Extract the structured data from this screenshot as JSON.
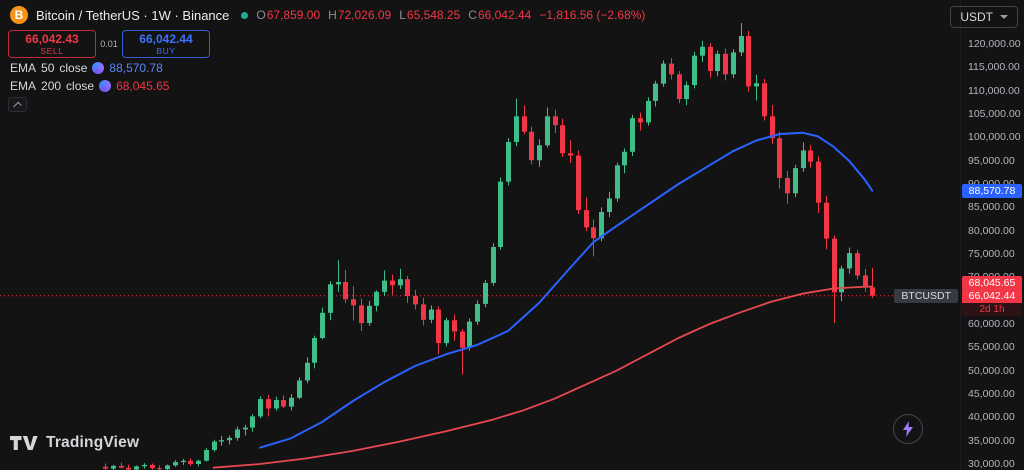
{
  "header": {
    "symbol_title": "Bitcoin / TetherUS · 1W · Binance",
    "ohlc": {
      "o_label": "O",
      "o": "67,859.00",
      "h_label": "H",
      "h": "72,026.09",
      "l_label": "L",
      "l": "65,548.25",
      "c_label": "C",
      "c": "66,042.44",
      "change": "−1,816.56 (−2.68%)"
    },
    "currency_button": "USDT",
    "sell_price": "66,042.43",
    "sell_label": "SELL",
    "spread": "0.01",
    "buy_price": "66,042.44",
    "buy_label": "BUY",
    "indicators": [
      {
        "name": "EMA",
        "param": "50",
        "source": "close",
        "value": "88,570.78",
        "color": "#5b84f6"
      },
      {
        "name": "EMA",
        "param": "200",
        "source": "close",
        "value": "68,045.65",
        "color": "#f23645"
      }
    ]
  },
  "badges": {
    "ema50": {
      "text": "88,570.78",
      "value": 88570.78,
      "color": "#2962ff"
    },
    "ema200": {
      "text": "68,045.65",
      "value": 68045.65,
      "color": "#f23645"
    },
    "last": {
      "text": "66,042.44",
      "value": 66042.44,
      "color": "#f23645"
    },
    "countdown": "2d 1h",
    "symbol_label": "BTCUSDT"
  },
  "footer": {
    "logo_text": "TradingView"
  },
  "chart_data": {
    "type": "candlestick",
    "title": "Bitcoin / TetherUS 1W Binance",
    "last_price": 66042.44,
    "grid": false,
    "price_axis": {
      "visible_min": 30000,
      "visible_max": 120000,
      "tick_step": 5000,
      "ticks": [
        120000,
        115000,
        110000,
        105000,
        100000,
        95000,
        90000,
        85000,
        80000,
        75000,
        70000,
        65000,
        60000,
        55000,
        50000,
        45000,
        40000,
        35000,
        30000
      ],
      "tick_labels": [
        "120,000.00",
        "115,000.00",
        "110,000.00",
        "105,000.00",
        "100,000.00",
        "95,000.00",
        "90,000.00",
        "85,000.00",
        "80,000.00",
        "75,000.00",
        "70,000.00",
        "65,000.00",
        "60,000.00",
        "55,000.00",
        "50,000.00",
        "45,000.00",
        "40,000.00",
        "35,000.00",
        "30,000.00"
      ]
    },
    "colors": {
      "up": "#41bd89",
      "down": "#f23645",
      "ema50": "#2962ff",
      "ema200": "#e8484f"
    },
    "candles_ohlc": [
      [
        29400,
        30100,
        28600,
        29000
      ],
      [
        29000,
        29800,
        28400,
        29600
      ],
      [
        29600,
        30300,
        29000,
        29200
      ],
      [
        29200,
        29900,
        28500,
        28800
      ],
      [
        28800,
        29700,
        28300,
        29500
      ],
      [
        29500,
        30200,
        29000,
        29800
      ],
      [
        29800,
        30100,
        28800,
        29100
      ],
      [
        29100,
        29700,
        28500,
        28900
      ],
      [
        28900,
        29900,
        28600,
        29700
      ],
      [
        29700,
        30800,
        29400,
        30400
      ],
      [
        30400,
        31100,
        29800,
        30700
      ],
      [
        30700,
        31200,
        29600,
        30000
      ],
      [
        30000,
        30900,
        29500,
        30700
      ],
      [
        30700,
        33400,
        30500,
        33000
      ],
      [
        33000,
        35200,
        32600,
        34800
      ],
      [
        34800,
        36000,
        33900,
        35100
      ],
      [
        35100,
        36100,
        34200,
        35600
      ],
      [
        35600,
        38000,
        35000,
        37400
      ],
      [
        37400,
        38400,
        36100,
        37800
      ],
      [
        37800,
        40700,
        36900,
        40200
      ],
      [
        40200,
        44500,
        39800,
        43900
      ],
      [
        43900,
        44800,
        40200,
        41900
      ],
      [
        41900,
        44400,
        41400,
        43700
      ],
      [
        43700,
        44700,
        42000,
        42300
      ],
      [
        42300,
        45000,
        41500,
        44200
      ],
      [
        44200,
        48600,
        43900,
        47900
      ],
      [
        47900,
        52900,
        47300,
        51700
      ],
      [
        51700,
        57500,
        50500,
        57000
      ],
      [
        57000,
        63500,
        56700,
        62400
      ],
      [
        62400,
        69200,
        60800,
        68500
      ],
      [
        68500,
        73700,
        66900,
        69000
      ],
      [
        69000,
        71600,
        64500,
        65300
      ],
      [
        65300,
        68100,
        60800,
        64000
      ],
      [
        64000,
        65500,
        58500,
        60200
      ],
      [
        60200,
        64900,
        59600,
        63900
      ],
      [
        63900,
        67200,
        62700,
        66900
      ],
      [
        66900,
        71500,
        66000,
        69300
      ],
      [
        69300,
        70600,
        66300,
        68300
      ],
      [
        68300,
        71800,
        67500,
        69600
      ],
      [
        69600,
        70300,
        64500,
        66000
      ],
      [
        66000,
        67300,
        63100,
        64200
      ],
      [
        64200,
        65600,
        59700,
        60900
      ],
      [
        60900,
        64000,
        60200,
        63100
      ],
      [
        63100,
        63800,
        53500,
        55900
      ],
      [
        55900,
        61300,
        55200,
        60800
      ],
      [
        60800,
        62000,
        56400,
        58400
      ],
      [
        58400,
        58900,
        49200,
        54900
      ],
      [
        54900,
        61200,
        54300,
        60500
      ],
      [
        60500,
        65100,
        59800,
        64300
      ],
      [
        64300,
        69400,
        63600,
        68800
      ],
      [
        68800,
        77300,
        68200,
        76500
      ],
      [
        76500,
        91400,
        75900,
        90500
      ],
      [
        90500,
        99800,
        89700,
        99000
      ],
      [
        99000,
        108300,
        98100,
        104500
      ],
      [
        104500,
        106800,
        100600,
        101200
      ],
      [
        101200,
        102300,
        94200,
        95100
      ],
      [
        95100,
        99600,
        93700,
        98300
      ],
      [
        98300,
        106400,
        97800,
        104500
      ],
      [
        104500,
        105900,
        100900,
        102600
      ],
      [
        102600,
        104000,
        95800,
        96600
      ],
      [
        96600,
        99400,
        94500,
        96100
      ],
      [
        96100,
        97200,
        83600,
        84400
      ],
      [
        84400,
        87100,
        79900,
        80700
      ],
      [
        80700,
        82400,
        74500,
        78400
      ],
      [
        78400,
        85000,
        77700,
        84000
      ],
      [
        84000,
        88300,
        82900,
        86900
      ],
      [
        86900,
        94600,
        86200,
        94000
      ],
      [
        94000,
        97600,
        92300,
        96900
      ],
      [
        96900,
        104800,
        96000,
        104100
      ],
      [
        104100,
        105300,
        101400,
        103200
      ],
      [
        103200,
        108600,
        102500,
        107800
      ],
      [
        107800,
        112100,
        106600,
        111500
      ],
      [
        111500,
        116500,
        110800,
        115800
      ],
      [
        115800,
        117000,
        112400,
        113500
      ],
      [
        113500,
        114200,
        107300,
        108200
      ],
      [
        108200,
        112000,
        106900,
        111200
      ],
      [
        111200,
        118300,
        110500,
        117500
      ],
      [
        117500,
        120700,
        116200,
        119400
      ],
      [
        119400,
        120200,
        112800,
        114200
      ],
      [
        114200,
        118600,
        113100,
        117900
      ],
      [
        117900,
        119000,
        112200,
        113500
      ],
      [
        113500,
        118900,
        112700,
        118200
      ],
      [
        118200,
        124500,
        117400,
        121700
      ],
      [
        121700,
        122800,
        109800,
        110900
      ],
      [
        110900,
        113400,
        107900,
        111600
      ],
      [
        111600,
        112500,
        103600,
        104500
      ],
      [
        104500,
        106900,
        98600,
        99800
      ],
      [
        99800,
        101200,
        89000,
        91300
      ],
      [
        91300,
        92800,
        85800,
        88000
      ],
      [
        88000,
        94100,
        87200,
        93400
      ],
      [
        93400,
        98900,
        92600,
        97200
      ],
      [
        97200,
        98400,
        93500,
        94800
      ],
      [
        94800,
        95900,
        83800,
        86000
      ],
      [
        86000,
        87500,
        76000,
        78300
      ],
      [
        78300,
        79000,
        60200,
        66800
      ],
      [
        66800,
        72500,
        64900,
        71900
      ],
      [
        71900,
        76400,
        70800,
        75200
      ],
      [
        75200,
        75900,
        69600,
        70400
      ],
      [
        70400,
        71800,
        66900,
        67859
      ],
      [
        67859,
        72026.09,
        65548.25,
        66042.44
      ]
    ],
    "overlays": [
      {
        "name": "EMA 50",
        "color": "#2962ff",
        "points": [
          [
            20,
            33500
          ],
          [
            24,
            35500
          ],
          [
            28,
            39000
          ],
          [
            32,
            43500
          ],
          [
            36,
            47500
          ],
          [
            40,
            51000
          ],
          [
            44,
            53500
          ],
          [
            48,
            55500
          ],
          [
            52,
            58500
          ],
          [
            56,
            64500
          ],
          [
            60,
            72000
          ],
          [
            63,
            77500
          ],
          [
            66,
            81000
          ],
          [
            70,
            85500
          ],
          [
            74,
            90000
          ],
          [
            78,
            94000
          ],
          [
            81,
            97000
          ],
          [
            84,
            99300
          ],
          [
            87,
            100700
          ],
          [
            90,
            101000
          ],
          [
            92,
            100200
          ],
          [
            94,
            98000
          ],
          [
            96,
            95000
          ],
          [
            98,
            91000
          ],
          [
            99,
            88571
          ]
        ]
      },
      {
        "name": "EMA 200",
        "color": "#e8484f",
        "points": [
          [
            14,
            29200
          ],
          [
            20,
            30000
          ],
          [
            26,
            31200
          ],
          [
            32,
            32800
          ],
          [
            38,
            34800
          ],
          [
            44,
            37000
          ],
          [
            50,
            39500
          ],
          [
            54,
            41500
          ],
          [
            58,
            44000
          ],
          [
            62,
            47000
          ],
          [
            66,
            50000
          ],
          [
            70,
            53500
          ],
          [
            74,
            57000
          ],
          [
            78,
            60000
          ],
          [
            82,
            62500
          ],
          [
            86,
            64800
          ],
          [
            90,
            66500
          ],
          [
            94,
            67600
          ],
          [
            97,
            67900
          ],
          [
            99,
            68045.65
          ]
        ]
      }
    ]
  }
}
